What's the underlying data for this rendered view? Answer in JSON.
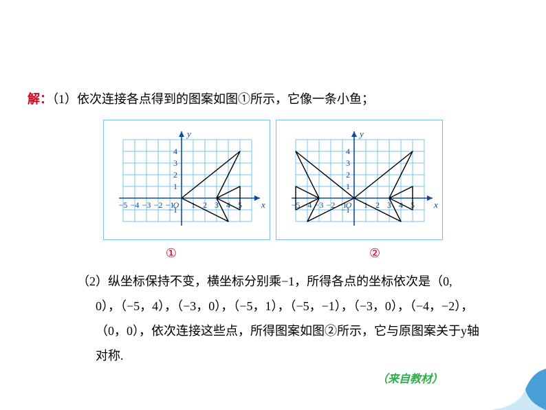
{
  "grid": {
    "cell": 17,
    "bg": "#ffffff",
    "line_color": "#79c1ea",
    "axis_color": "#0b4aa0",
    "tick_font": 12,
    "tick_color": "#0b4aa0",
    "axis_label_color": "#0b4aa0",
    "axis_label_font_style": "italic"
  },
  "chart1": {
    "xrange": [
      -5,
      6
    ],
    "yrange": [
      -2,
      5
    ],
    "xticks": [
      -5,
      -4,
      -3,
      -2,
      -1,
      1,
      2,
      3,
      4,
      5
    ],
    "yticks": [
      -1,
      1,
      2,
      3,
      4
    ],
    "origin_label": "O",
    "xlabel": "x",
    "ylabel": "y",
    "shapes": [
      {
        "points": [
          [
            0,
            0
          ],
          [
            5,
            4
          ],
          [
            3,
            0
          ],
          [
            5,
            1
          ],
          [
            5,
            -1
          ],
          [
            3,
            0
          ],
          [
            4,
            -2
          ],
          [
            0,
            0
          ]
        ],
        "stroke": "#000000",
        "width": 1.4,
        "fill": "none"
      }
    ]
  },
  "chart2": {
    "xrange": [
      -5,
      6
    ],
    "yrange": [
      -2,
      5
    ],
    "xticks": [
      -5,
      -4,
      -3,
      -2,
      -1,
      1,
      2,
      3,
      4,
      5
    ],
    "yticks": [
      -1,
      1,
      2,
      3,
      4
    ],
    "origin_label": "O",
    "xlabel": "x",
    "ylabel": "y",
    "shapes": [
      {
        "points": [
          [
            0,
            0
          ],
          [
            5,
            4
          ],
          [
            3,
            0
          ],
          [
            5,
            1
          ],
          [
            5,
            -1
          ],
          [
            3,
            0
          ],
          [
            4,
            -2
          ],
          [
            0,
            0
          ]
        ],
        "stroke": "#000000",
        "width": 1.4,
        "fill": "none"
      },
      {
        "points": [
          [
            0,
            0
          ],
          [
            -5,
            4
          ],
          [
            -3,
            0
          ],
          [
            -5,
            1
          ],
          [
            -5,
            -1
          ],
          [
            -3,
            0
          ],
          [
            -4,
            -2
          ],
          [
            0,
            0
          ]
        ],
        "stroke": "#000000",
        "width": 1.4,
        "fill": "none"
      }
    ]
  },
  "labels": {
    "solution": "解：",
    "line1_rest": "（1）依次连接各点得到的图案如图①所示，它像一条小鱼；",
    "circ1": "①",
    "circ2": "②",
    "para2": "（2）纵坐标保持不变，横坐标分别乘−1，所得各点的坐标依次是（0, 0），（−5，4），（−3，0），（−5，1），（−5，−1），（−3，0），（−4，−2），（0，0），依次连接这些点，所得图案如图②所示，它与原图案关于y轴对称.",
    "source": "（来自教材）"
  },
  "corner": {
    "curl_main": "#4a9ed8",
    "curl_light": "#cfe8f7"
  }
}
